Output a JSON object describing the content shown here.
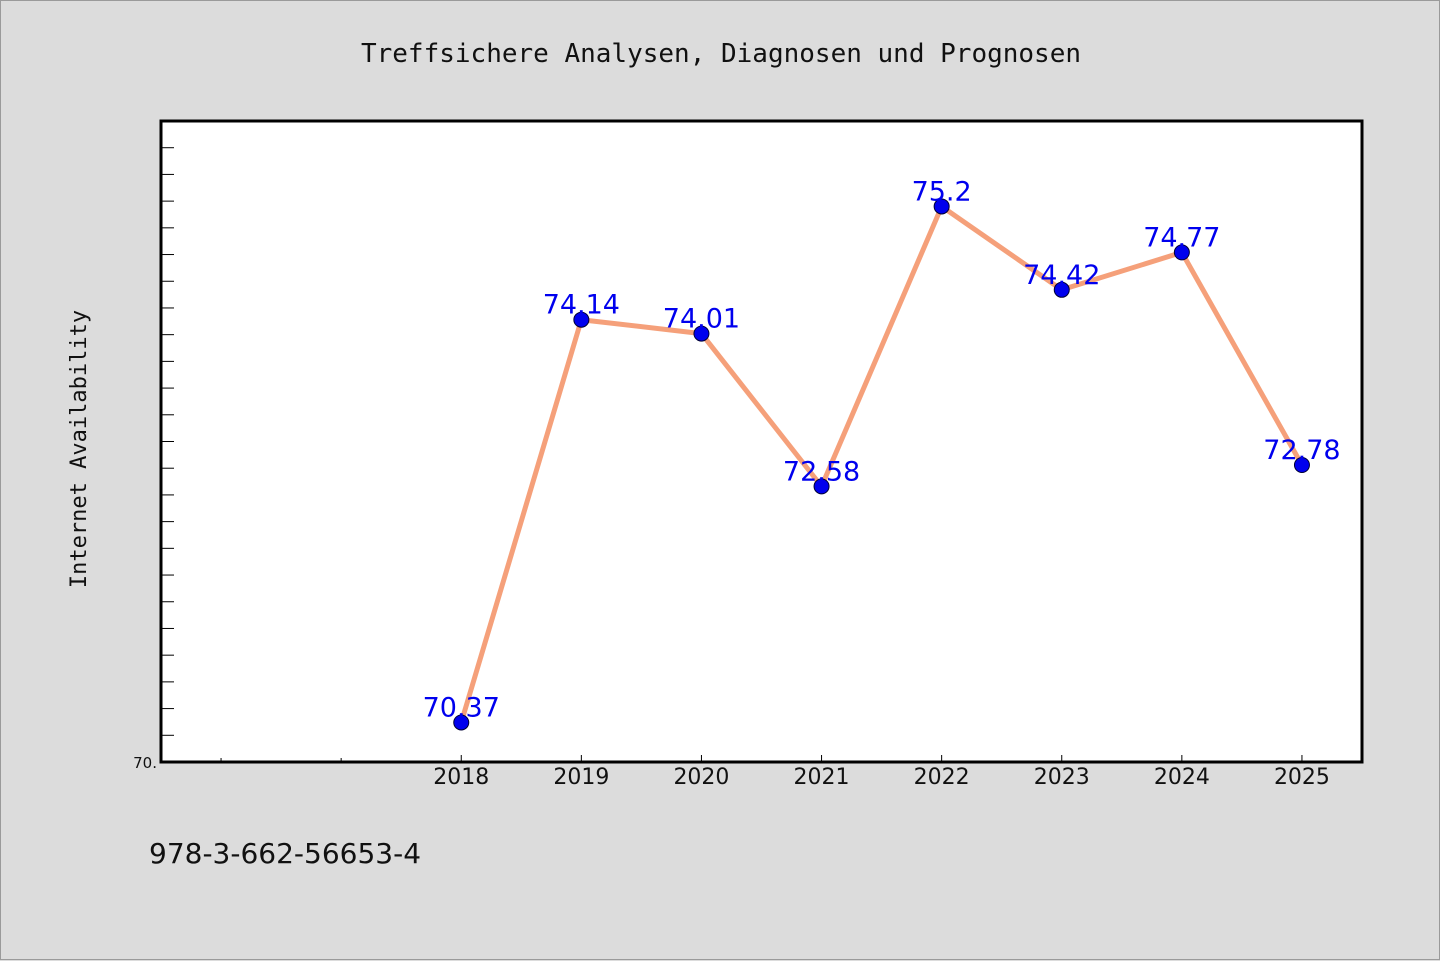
{
  "chart_data": {
    "type": "line",
    "title": "Treffsichere Analysen, Diagnosen und Prognosen",
    "ylabel": "Internet Availability",
    "xlabel": "",
    "x": [
      "2018",
      "2019",
      "2020",
      "2021",
      "2022",
      "2023",
      "2024",
      "2025"
    ],
    "series": [
      {
        "values": [
          70.37,
          74.14,
          74.01,
          72.58,
          75.2,
          74.42,
          74.77,
          72.78
        ]
      }
    ],
    "data_labels": [
      "70.37",
      "74.14",
      "74.01",
      "72.58",
      "75.2",
      "74.42",
      "74.77",
      "72.78"
    ],
    "x_slots": 10,
    "x_first_category_slot": 2,
    "ylim": [
      70,
      76
    ],
    "y_tick_labels": [
      "70."
    ],
    "grid": false,
    "legend": "none",
    "colors": {
      "line": "#f5a07a",
      "marker": "#0000ee",
      "marker_edge": "#000033",
      "data_label": "#0000ee",
      "background": "#dcdcdc",
      "plot_background": "#ffffff"
    }
  },
  "footer": {
    "isbn": "978-3-662-56653-4"
  }
}
